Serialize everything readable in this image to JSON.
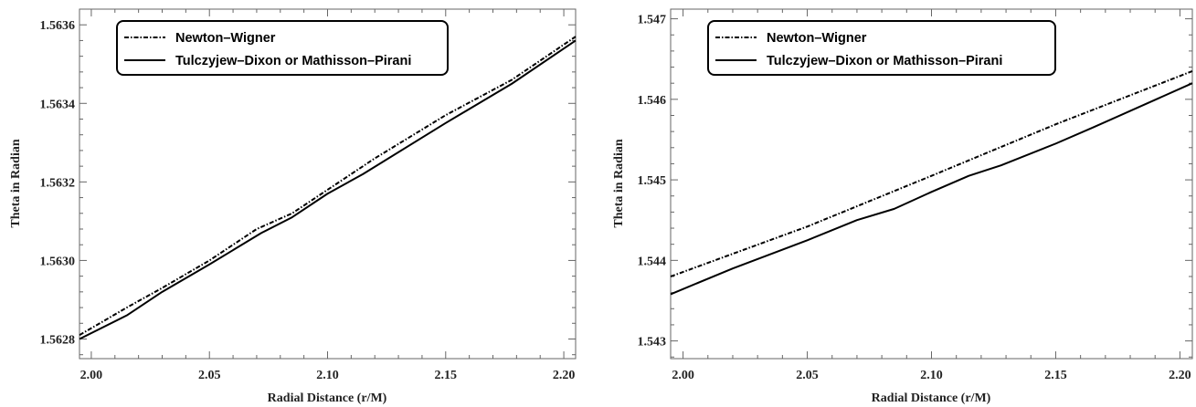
{
  "chart_data": [
    {
      "type": "line",
      "xlabel": "Radial Distance (r/M)",
      "ylabel": "Theta in Radian",
      "xlim": [
        1.995,
        2.205
      ],
      "ylim": [
        1.56275,
        1.56364
      ],
      "xticks": [
        2.0,
        2.05,
        2.1,
        2.15,
        2.2
      ],
      "yticks": [
        1.5628,
        1.563,
        1.5632,
        1.5634,
        1.5636
      ],
      "xtick_labels": [
        "2.00",
        "2.05",
        "2.10",
        "2.15",
        "2.20"
      ],
      "ytick_labels": [
        "1.5628",
        "1.5630",
        "1.5632",
        "1.5634",
        "1.5636"
      ],
      "legend_position": "top-left",
      "grid": false,
      "series": [
        {
          "name": "Newton–Wigner",
          "style": "dash-dot",
          "color": "#000000",
          "x": [
            1.995,
            2.015,
            2.03,
            2.05,
            2.07,
            2.085,
            2.1,
            2.12,
            2.15,
            2.178,
            2.205
          ],
          "y": [
            1.56281,
            1.56288,
            1.56293,
            1.563,
            1.56308,
            1.56312,
            1.56318,
            1.56326,
            1.56337,
            1.56346,
            1.56357
          ]
        },
        {
          "name": "Tulczyjew–Dixon or Mathisson–Pirani",
          "style": "solid",
          "color": "#000000",
          "x": [
            1.995,
            2.015,
            2.03,
            2.05,
            2.072,
            2.085,
            2.1,
            2.115,
            2.15,
            2.178,
            2.205
          ],
          "y": [
            1.5628,
            1.56286,
            1.56292,
            1.56299,
            1.56307,
            1.56311,
            1.56317,
            1.56322,
            1.56335,
            1.56345,
            1.56356
          ]
        }
      ]
    },
    {
      "type": "line",
      "xlabel": "Radial Distance (r/M)",
      "ylabel": "Theta in Radian",
      "xlim": [
        1.995,
        2.205
      ],
      "ylim": [
        1.54278,
        1.54712
      ],
      "xticks": [
        2.0,
        2.05,
        2.1,
        2.15,
        2.2
      ],
      "yticks": [
        1.543,
        1.544,
        1.545,
        1.546,
        1.547
      ],
      "xtick_labels": [
        "2.00",
        "2.05",
        "2.10",
        "2.15",
        "2.20"
      ],
      "ytick_labels": [
        "1.543",
        "1.544",
        "1.545",
        "1.546",
        "1.547"
      ],
      "legend_position": "top-left",
      "grid": false,
      "series": [
        {
          "name": "Newton–Wigner",
          "style": "dash-dot",
          "color": "#000000",
          "x": [
            1.995,
            2.05,
            2.1,
            2.15,
            2.205
          ],
          "y": [
            1.5438,
            1.54442,
            1.54505,
            1.54569,
            1.54635
          ]
        },
        {
          "name": "Tulczyjew–Dixon or Mathisson–Pirani",
          "style": "solid",
          "color": "#000000",
          "x": [
            1.995,
            2.02,
            2.05,
            2.07,
            2.085,
            2.1,
            2.115,
            2.128,
            2.15,
            2.165,
            2.205
          ],
          "y": [
            1.54358,
            1.5439,
            1.54425,
            1.5445,
            1.54464,
            1.54485,
            1.54505,
            1.54518,
            1.54545,
            1.54565,
            1.5462
          ]
        }
      ]
    }
  ]
}
